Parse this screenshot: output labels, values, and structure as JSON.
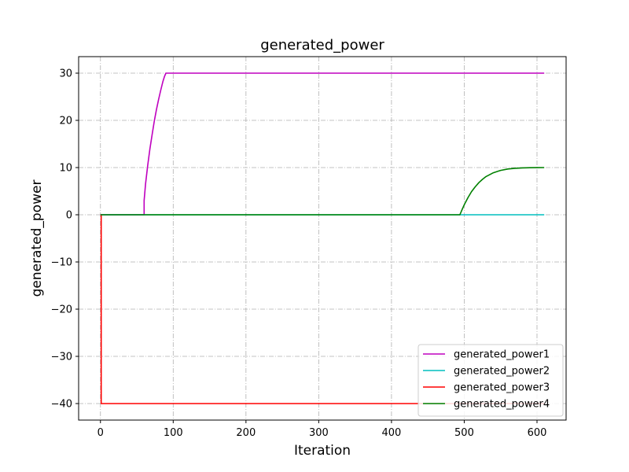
{
  "chart_data": {
    "type": "line",
    "title": "generated_power",
    "xlabel": "Iteration",
    "ylabel": "generated_power",
    "xlim": [
      -30,
      640
    ],
    "ylim": [
      -43.5,
      33.5
    ],
    "xticks": [
      0,
      100,
      200,
      300,
      400,
      500,
      600
    ],
    "yticks": [
      30,
      20,
      10,
      0,
      -10,
      -20,
      -30,
      -40
    ],
    "xtick_labels": [
      "0",
      "100",
      "200",
      "300",
      "400",
      "500",
      "600"
    ],
    "ytick_labels": [
      "30",
      "20",
      "10",
      "0",
      "−10",
      "−20",
      "−30",
      "−40"
    ],
    "grid": true,
    "legend_position": "lower-right",
    "series": [
      {
        "name": "generated_power1",
        "color": "#bf00bf",
        "x": [
          0,
          60,
          60,
          62,
          65,
          68,
          71,
          74,
          77,
          80,
          83,
          86,
          88,
          90,
          610
        ],
        "y": [
          0,
          0,
          3,
          6.5,
          10.5,
          14,
          17,
          19.8,
          22.3,
          24.5,
          26.5,
          28.3,
          29.3,
          30,
          30
        ]
      },
      {
        "name": "generated_power2",
        "color": "#00bfbf",
        "x": [
          0,
          610
        ],
        "y": [
          0,
          0
        ]
      },
      {
        "name": "generated_power3",
        "color": "#ff0000",
        "x": [
          0,
          1,
          1,
          610
        ],
        "y": [
          0,
          0,
          -40,
          -40
        ]
      },
      {
        "name": "generated_power4",
        "color": "#008000",
        "x": [
          0,
          494,
          497,
          500,
          505,
          510,
          515,
          520,
          525,
          530,
          540,
          550,
          560,
          570,
          580,
          590,
          600,
          610
        ],
        "y": [
          0,
          0,
          1.1,
          2.1,
          3.6,
          4.9,
          5.9,
          6.8,
          7.5,
          8.1,
          8.9,
          9.4,
          9.7,
          9.85,
          9.93,
          9.97,
          9.99,
          10
        ]
      }
    ]
  }
}
